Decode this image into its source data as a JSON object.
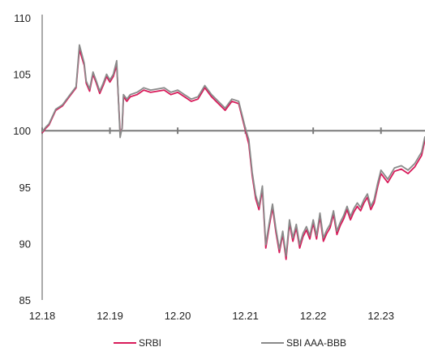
{
  "chart_data": {
    "type": "line",
    "title": "",
    "xlabel": "",
    "ylabel": "",
    "x_range": [
      2018.0,
      2023.65
    ],
    "ylim": [
      85,
      110
    ],
    "y_ticks": [
      85,
      90,
      95,
      100,
      105,
      110
    ],
    "x_ticks": [
      {
        "label": "12.18",
        "x": 2018.0
      },
      {
        "label": "12.19",
        "x": 2019.0
      },
      {
        "label": "12.20",
        "x": 2020.0
      },
      {
        "label": "12.21",
        "x": 2021.0
      },
      {
        "label": "12.22",
        "x": 2022.0
      },
      {
        "label": "12.23",
        "x": 2023.0
      }
    ],
    "reference_line": 100,
    "grid": false,
    "legend_position": "bottom",
    "colors": {
      "srbi": "#d81b5a",
      "sbi": "#8a8a8a",
      "reference": "#7a7a7a",
      "axis": "#555555"
    },
    "series": [
      {
        "name": "SRBI",
        "color": "#d81b5a",
        "x": [
          2018.0,
          2018.05,
          2018.1,
          2018.2,
          2018.3,
          2018.4,
          2018.5,
          2018.55,
          2018.62,
          2018.65,
          2018.7,
          2018.75,
          2018.8,
          2018.85,
          2018.9,
          2018.95,
          2019.0,
          2019.05,
          2019.1,
          2019.15,
          2019.18,
          2019.2,
          2019.25,
          2019.3,
          2019.4,
          2019.5,
          2019.6,
          2019.7,
          2019.8,
          2019.9,
          2020.0,
          2020.1,
          2020.2,
          2020.3,
          2020.4,
          2020.5,
          2020.6,
          2020.7,
          2020.8,
          2020.9,
          2021.0,
          2021.05,
          2021.1,
          2021.15,
          2021.2,
          2021.25,
          2021.3,
          2021.35,
          2021.4,
          2021.45,
          2021.5,
          2021.55,
          2021.6,
          2021.65,
          2021.7,
          2021.75,
          2021.8,
          2021.85,
          2021.9,
          2021.95,
          2022.0,
          2022.05,
          2022.1,
          2022.15,
          2022.2,
          2022.25,
          2022.3,
          2022.35,
          2022.4,
          2022.45,
          2022.5,
          2022.55,
          2022.6,
          2022.65,
          2022.7,
          2022.75,
          2022.8,
          2022.85,
          2022.9,
          2022.95,
          2023.0,
          2023.1,
          2023.2,
          2023.3,
          2023.4,
          2023.5,
          2023.6,
          2023.65
        ],
        "values": [
          99.8,
          100.2,
          100.5,
          101.8,
          102.2,
          103.0,
          103.8,
          107.2,
          105.8,
          104.2,
          103.5,
          105.0,
          104.2,
          103.3,
          104.0,
          104.8,
          104.3,
          104.8,
          105.8,
          99.8,
          100.2,
          103.0,
          102.6,
          103.0,
          103.2,
          103.6,
          103.4,
          103.5,
          103.6,
          103.2,
          103.4,
          103.0,
          102.6,
          102.8,
          103.8,
          103.0,
          102.4,
          101.8,
          102.6,
          102.4,
          100.0,
          98.8,
          96.0,
          94.0,
          93.0,
          94.8,
          89.6,
          91.5,
          93.2,
          91.0,
          89.2,
          90.8,
          88.6,
          91.8,
          90.2,
          91.4,
          89.6,
          90.6,
          91.2,
          90.4,
          91.8,
          90.4,
          92.4,
          90.2,
          90.9,
          91.4,
          92.6,
          90.8,
          91.6,
          92.2,
          93.0,
          92.1,
          92.8,
          93.3,
          92.9,
          93.6,
          94.1,
          93.0,
          93.6,
          95.0,
          96.2,
          95.4,
          96.4,
          96.6,
          96.2,
          96.8,
          97.8,
          99.2
        ]
      },
      {
        "name": "SBI AAA-BBB",
        "color": "#8a8a8a",
        "x": [
          2018.0,
          2018.05,
          2018.1,
          2018.2,
          2018.3,
          2018.4,
          2018.5,
          2018.55,
          2018.62,
          2018.65,
          2018.7,
          2018.75,
          2018.8,
          2018.85,
          2018.9,
          2018.95,
          2019.0,
          2019.05,
          2019.1,
          2019.15,
          2019.18,
          2019.2,
          2019.25,
          2019.3,
          2019.4,
          2019.5,
          2019.6,
          2019.7,
          2019.8,
          2019.9,
          2020.0,
          2020.1,
          2020.2,
          2020.3,
          2020.4,
          2020.5,
          2020.6,
          2020.7,
          2020.8,
          2020.9,
          2021.0,
          2021.05,
          2021.1,
          2021.15,
          2021.2,
          2021.25,
          2021.3,
          2021.35,
          2021.4,
          2021.45,
          2021.5,
          2021.55,
          2021.6,
          2021.65,
          2021.7,
          2021.75,
          2021.8,
          2021.85,
          2021.9,
          2021.95,
          2022.0,
          2022.05,
          2022.1,
          2022.15,
          2022.2,
          2022.25,
          2022.3,
          2022.35,
          2022.4,
          2022.45,
          2022.5,
          2022.55,
          2022.6,
          2022.65,
          2022.7,
          2022.75,
          2022.8,
          2022.85,
          2022.9,
          2022.95,
          2023.0,
          2023.1,
          2023.2,
          2023.3,
          2023.4,
          2023.5,
          2023.6,
          2023.65
        ],
        "values": [
          99.9,
          100.3,
          100.6,
          101.9,
          102.3,
          103.1,
          103.9,
          107.6,
          106.0,
          104.4,
          103.7,
          105.2,
          104.4,
          103.5,
          104.2,
          105.0,
          104.5,
          105.0,
          106.2,
          99.4,
          100.3,
          103.2,
          102.8,
          103.2,
          103.4,
          103.8,
          103.6,
          103.7,
          103.8,
          103.4,
          103.6,
          103.2,
          102.8,
          103.0,
          104.0,
          103.2,
          102.6,
          102.0,
          102.8,
          102.6,
          100.2,
          99.2,
          96.3,
          94.3,
          93.3,
          95.1,
          89.9,
          91.8,
          93.5,
          91.3,
          89.5,
          91.1,
          88.9,
          92.1,
          90.5,
          91.7,
          89.9,
          90.9,
          91.5,
          90.7,
          92.1,
          90.7,
          92.7,
          90.5,
          91.2,
          91.7,
          92.9,
          91.1,
          91.9,
          92.5,
          93.3,
          92.4,
          93.1,
          93.6,
          93.2,
          93.9,
          94.4,
          93.3,
          93.9,
          95.3,
          96.5,
          95.7,
          96.7,
          96.9,
          96.5,
          97.1,
          98.1,
          99.5
        ]
      }
    ]
  }
}
